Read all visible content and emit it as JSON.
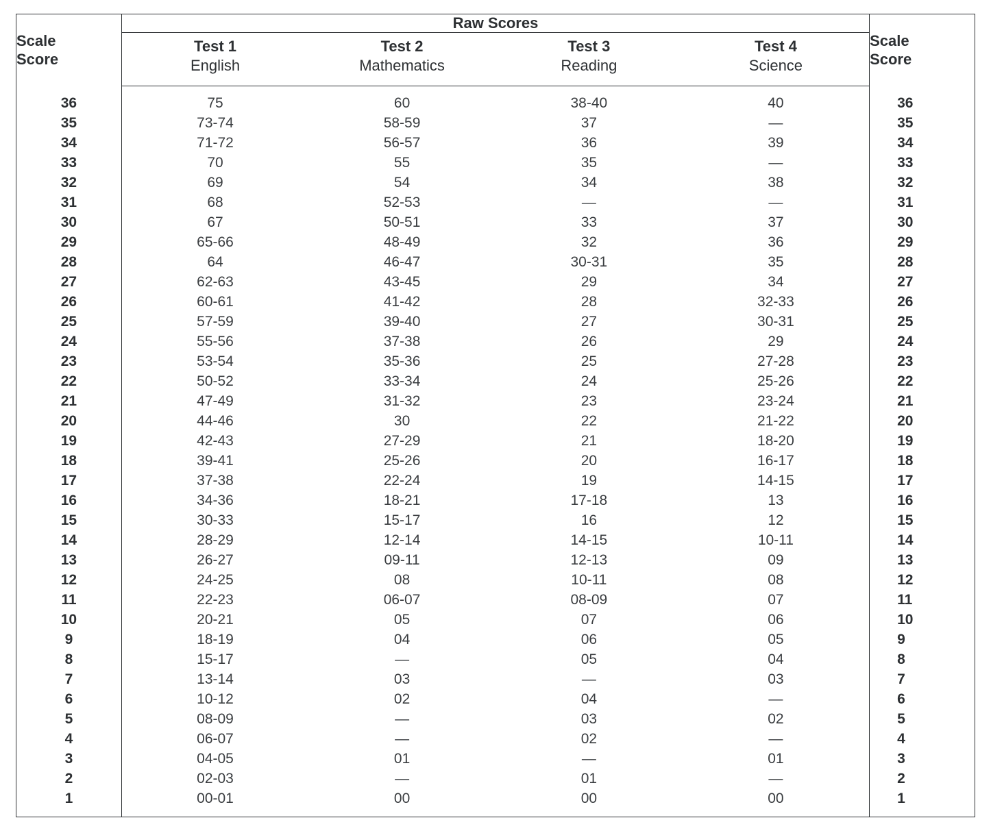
{
  "table": {
    "type": "table",
    "colors": {
      "text": "#2d3033",
      "border": "#2d3033",
      "background": "#ffffff"
    },
    "font": {
      "family": "Helvetica Neue, Helvetica, Arial, sans-serif",
      "header_bold_pt": 22,
      "body_pt": 21
    },
    "headers": {
      "raw_scores": "Raw Scores",
      "scale_score": "Scale\nScore",
      "tests": [
        {
          "title": "Test 1",
          "subject": "English"
        },
        {
          "title": "Test 2",
          "subject": "Mathematics"
        },
        {
          "title": "Test 3",
          "subject": "Reading"
        },
        {
          "title": "Test 4",
          "subject": "Science"
        }
      ]
    },
    "column_widths_pct": [
      11,
      19.5,
      19.5,
      19.5,
      19.5,
      11
    ],
    "rows": [
      {
        "scale": "36",
        "t1": "75",
        "t2": "60",
        "t3": "38-40",
        "t4": "40"
      },
      {
        "scale": "35",
        "t1": "73-74",
        "t2": "58-59",
        "t3": "37",
        "t4": "—"
      },
      {
        "scale": "34",
        "t1": "71-72",
        "t2": "56-57",
        "t3": "36",
        "t4": "39"
      },
      {
        "scale": "33",
        "t1": "70",
        "t2": "55",
        "t3": "35",
        "t4": "—"
      },
      {
        "scale": "32",
        "t1": "69",
        "t2": "54",
        "t3": "34",
        "t4": "38"
      },
      {
        "scale": "31",
        "t1": "68",
        "t2": "52-53",
        "t3": "—",
        "t4": "—"
      },
      {
        "scale": "30",
        "t1": "67",
        "t2": "50-51",
        "t3": "33",
        "t4": "37"
      },
      {
        "scale": "29",
        "t1": "65-66",
        "t2": "48-49",
        "t3": "32",
        "t4": "36"
      },
      {
        "scale": "28",
        "t1": "64",
        "t2": "46-47",
        "t3": "30-31",
        "t4": "35"
      },
      {
        "scale": "27",
        "t1": "62-63",
        "t2": "43-45",
        "t3": "29",
        "t4": "34"
      },
      {
        "scale": "26",
        "t1": "60-61",
        "t2": "41-42",
        "t3": "28",
        "t4": "32-33"
      },
      {
        "scale": "25",
        "t1": "57-59",
        "t2": "39-40",
        "t3": "27",
        "t4": "30-31"
      },
      {
        "scale": "24",
        "t1": "55-56",
        "t2": "37-38",
        "t3": "26",
        "t4": "29"
      },
      {
        "scale": "23",
        "t1": "53-54",
        "t2": "35-36",
        "t3": "25",
        "t4": "27-28"
      },
      {
        "scale": "22",
        "t1": "50-52",
        "t2": "33-34",
        "t3": "24",
        "t4": "25-26"
      },
      {
        "scale": "21",
        "t1": "47-49",
        "t2": "31-32",
        "t3": "23",
        "t4": "23-24"
      },
      {
        "scale": "20",
        "t1": "44-46",
        "t2": "30",
        "t3": "22",
        "t4": "21-22"
      },
      {
        "scale": "19",
        "t1": "42-43",
        "t2": "27-29",
        "t3": "21",
        "t4": "18-20"
      },
      {
        "scale": "18",
        "t1": "39-41",
        "t2": "25-26",
        "t3": "20",
        "t4": "16-17"
      },
      {
        "scale": "17",
        "t1": "37-38",
        "t2": "22-24",
        "t3": "19",
        "t4": "14-15"
      },
      {
        "scale": "16",
        "t1": "34-36",
        "t2": "18-21",
        "t3": "17-18",
        "t4": "13"
      },
      {
        "scale": "15",
        "t1": "30-33",
        "t2": "15-17",
        "t3": "16",
        "t4": "12"
      },
      {
        "scale": "14",
        "t1": "28-29",
        "t2": "12-14",
        "t3": "14-15",
        "t4": "10-11"
      },
      {
        "scale": "13",
        "t1": "26-27",
        "t2": "09-11",
        "t3": "12-13",
        "t4": "09"
      },
      {
        "scale": "12",
        "t1": "24-25",
        "t2": "08",
        "t3": "10-11",
        "t4": "08"
      },
      {
        "scale": "11",
        "t1": "22-23",
        "t2": "06-07",
        "t3": "08-09",
        "t4": "07"
      },
      {
        "scale": "10",
        "t1": "20-21",
        "t2": "05",
        "t3": "07",
        "t4": "06"
      },
      {
        "scale": "9",
        "t1": "18-19",
        "t2": "04",
        "t3": "06",
        "t4": "05"
      },
      {
        "scale": "8",
        "t1": "15-17",
        "t2": "—",
        "t3": "05",
        "t4": "04"
      },
      {
        "scale": "7",
        "t1": "13-14",
        "t2": "03",
        "t3": "—",
        "t4": "03"
      },
      {
        "scale": "6",
        "t1": "10-12",
        "t2": "02",
        "t3": "04",
        "t4": "—"
      },
      {
        "scale": "5",
        "t1": "08-09",
        "t2": "—",
        "t3": "03",
        "t4": "02"
      },
      {
        "scale": "4",
        "t1": "06-07",
        "t2": "—",
        "t3": "02",
        "t4": "—"
      },
      {
        "scale": "3",
        "t1": "04-05",
        "t2": "01",
        "t3": "—",
        "t4": "01"
      },
      {
        "scale": "2",
        "t1": "02-03",
        "t2": "—",
        "t3": "01",
        "t4": "—"
      },
      {
        "scale": "1",
        "t1": "00-01",
        "t2": "00",
        "t3": "00",
        "t4": "00"
      }
    ]
  }
}
